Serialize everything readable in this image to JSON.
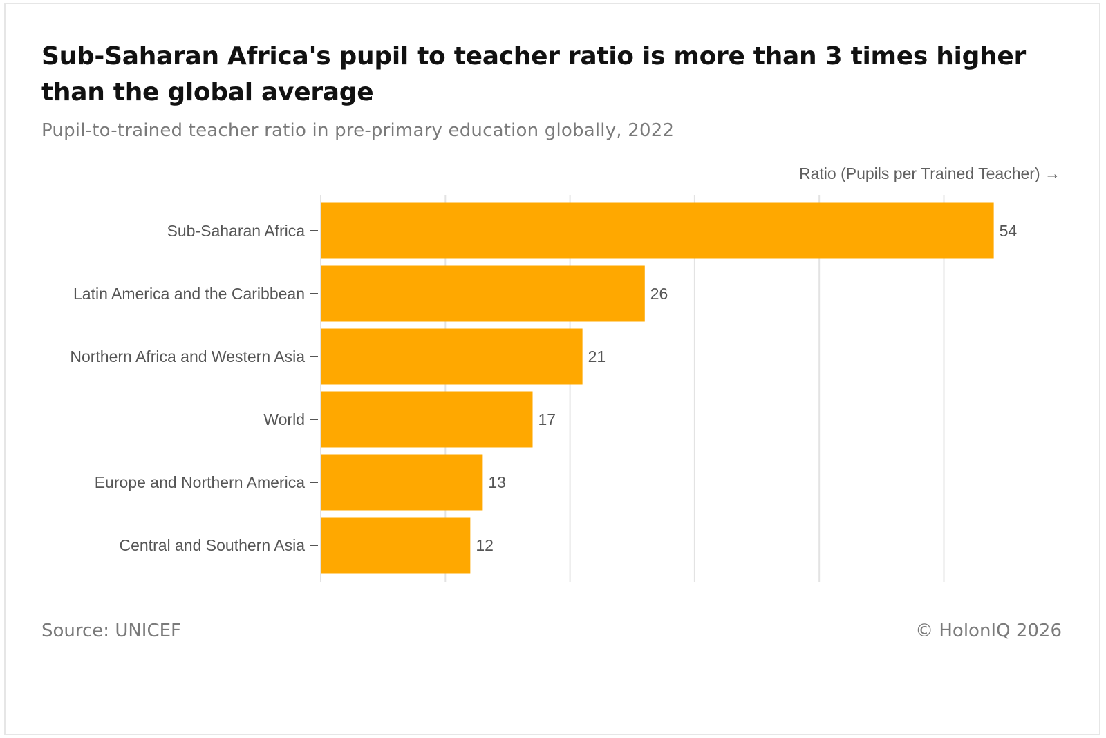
{
  "chart_data": {
    "type": "bar",
    "orientation": "horizontal",
    "title": "Sub-Saharan Africa's pupil to teacher ratio is more than 3 times higher than the global average",
    "subtitle": "Pupil-to-trained teacher ratio in pre-primary education globally, 2022",
    "xlabel": "Ratio (Pupils per Trained Teacher) →",
    "ylabel": "",
    "categories": [
      "Sub-Saharan Africa",
      "Latin America and the Caribbean",
      "Northern Africa and Western Asia",
      "World",
      "Europe and Northern America",
      "Central and Southern Asia"
    ],
    "values": [
      54,
      26,
      21,
      17,
      13,
      12
    ],
    "xlim": [
      0,
      60
    ],
    "grid": true,
    "bar_color": "#FFA800",
    "source": "Source: UNICEF",
    "credit": "© HolonIQ 2026"
  }
}
